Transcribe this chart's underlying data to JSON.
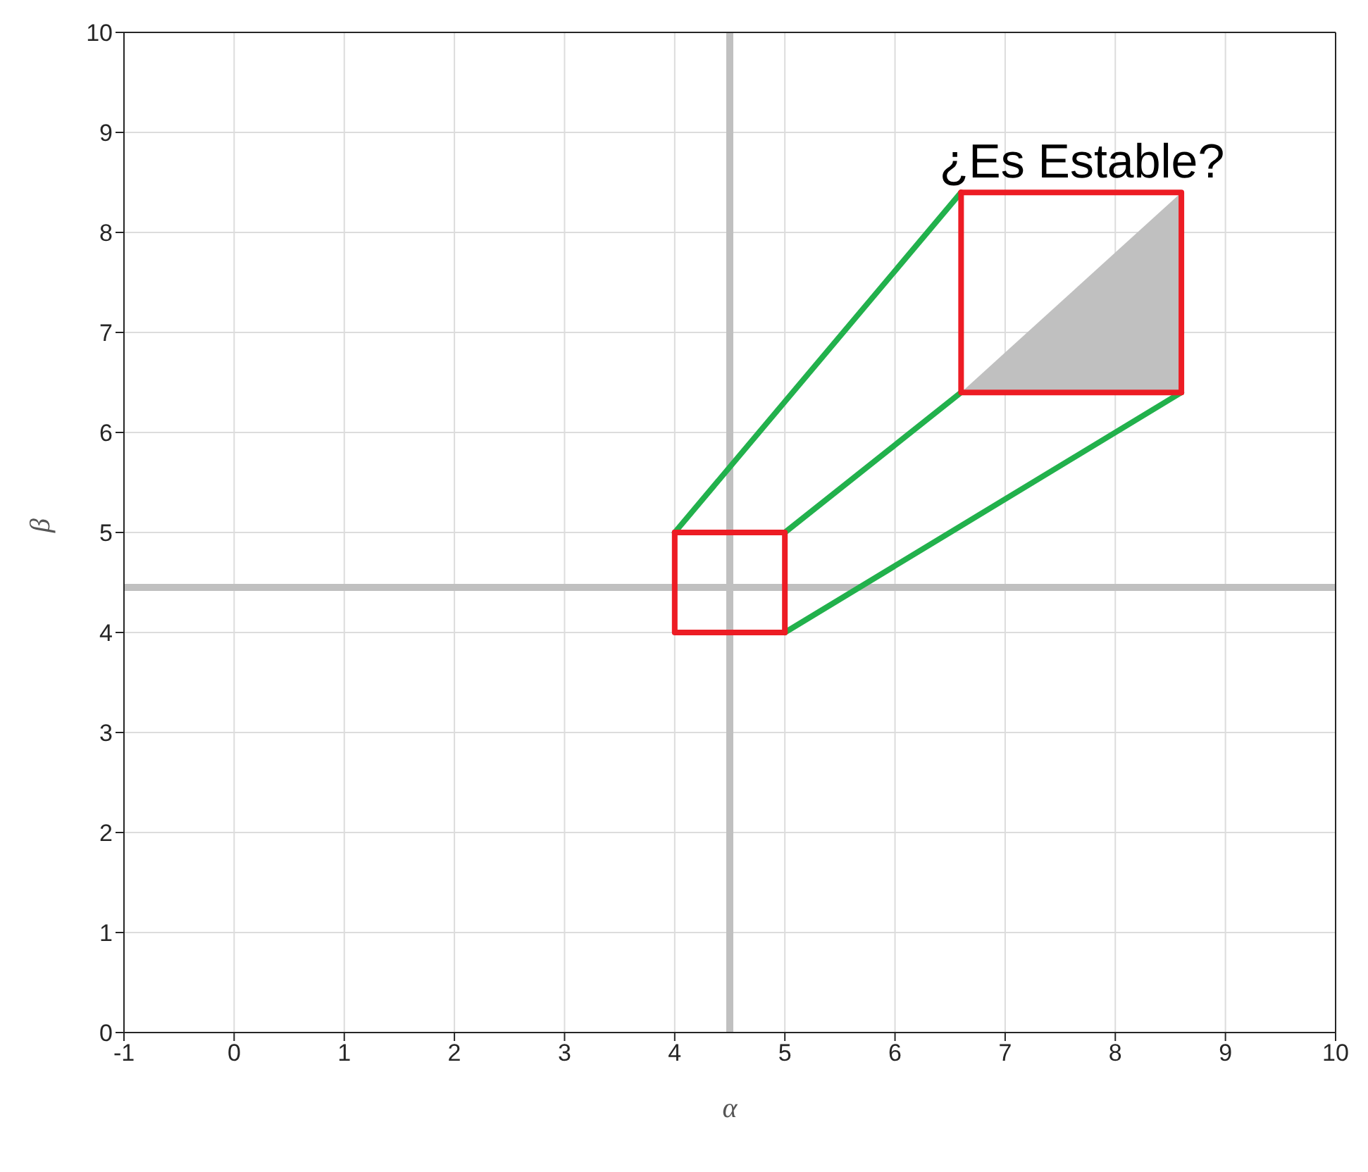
{
  "chart_data": {
    "type": "line",
    "xlabel": "α",
    "ylabel": "β",
    "xlim": [
      -1,
      10
    ],
    "ylim": [
      0,
      10
    ],
    "xticks": [
      -1,
      0,
      1,
      2,
      3,
      4,
      5,
      6,
      7,
      8,
      9,
      10
    ],
    "yticks": [
      0,
      1,
      2,
      3,
      4,
      5,
      6,
      7,
      8,
      9,
      10
    ],
    "grid": true,
    "marker": "none",
    "line_style": "solid",
    "series": [
      {
        "color": "#22b14c",
        "x": [
          4,
          6.6
        ],
        "values": [
          5,
          8.4
        ]
      },
      {
        "color": "#22b14c",
        "x": [
          5,
          6.6
        ],
        "values": [
          5,
          6.4
        ]
      },
      {
        "color": "#22b14c",
        "x": [
          5,
          8.6
        ],
        "values": [
          4,
          6.4
        ]
      },
      {
        "color": "#ed1c24",
        "x": [
          4,
          4,
          5
        ],
        "values": [
          5,
          4,
          4
        ]
      },
      {
        "color": "#ed1c24",
        "x": [
          4,
          5,
          5
        ],
        "values": [
          5,
          5,
          4
        ]
      },
      {
        "color": "#ed1c24",
        "x": [
          6.6,
          6.6,
          8.6
        ],
        "values": [
          8.4,
          6.4,
          6.4
        ]
      },
      {
        "color": "#ed1c24",
        "x": [
          6.6,
          8.6,
          8.6
        ],
        "values": [
          8.4,
          8.4,
          6.4
        ]
      }
    ],
    "ref_lines": [
      {
        "axis": "x",
        "value": 4.5,
        "color": "#c0c0c0"
      },
      {
        "axis": "y",
        "value": 4.45,
        "color": "#c0c0c0"
      }
    ],
    "annotations": [
      "¿Es Estable?"
    ]
  }
}
